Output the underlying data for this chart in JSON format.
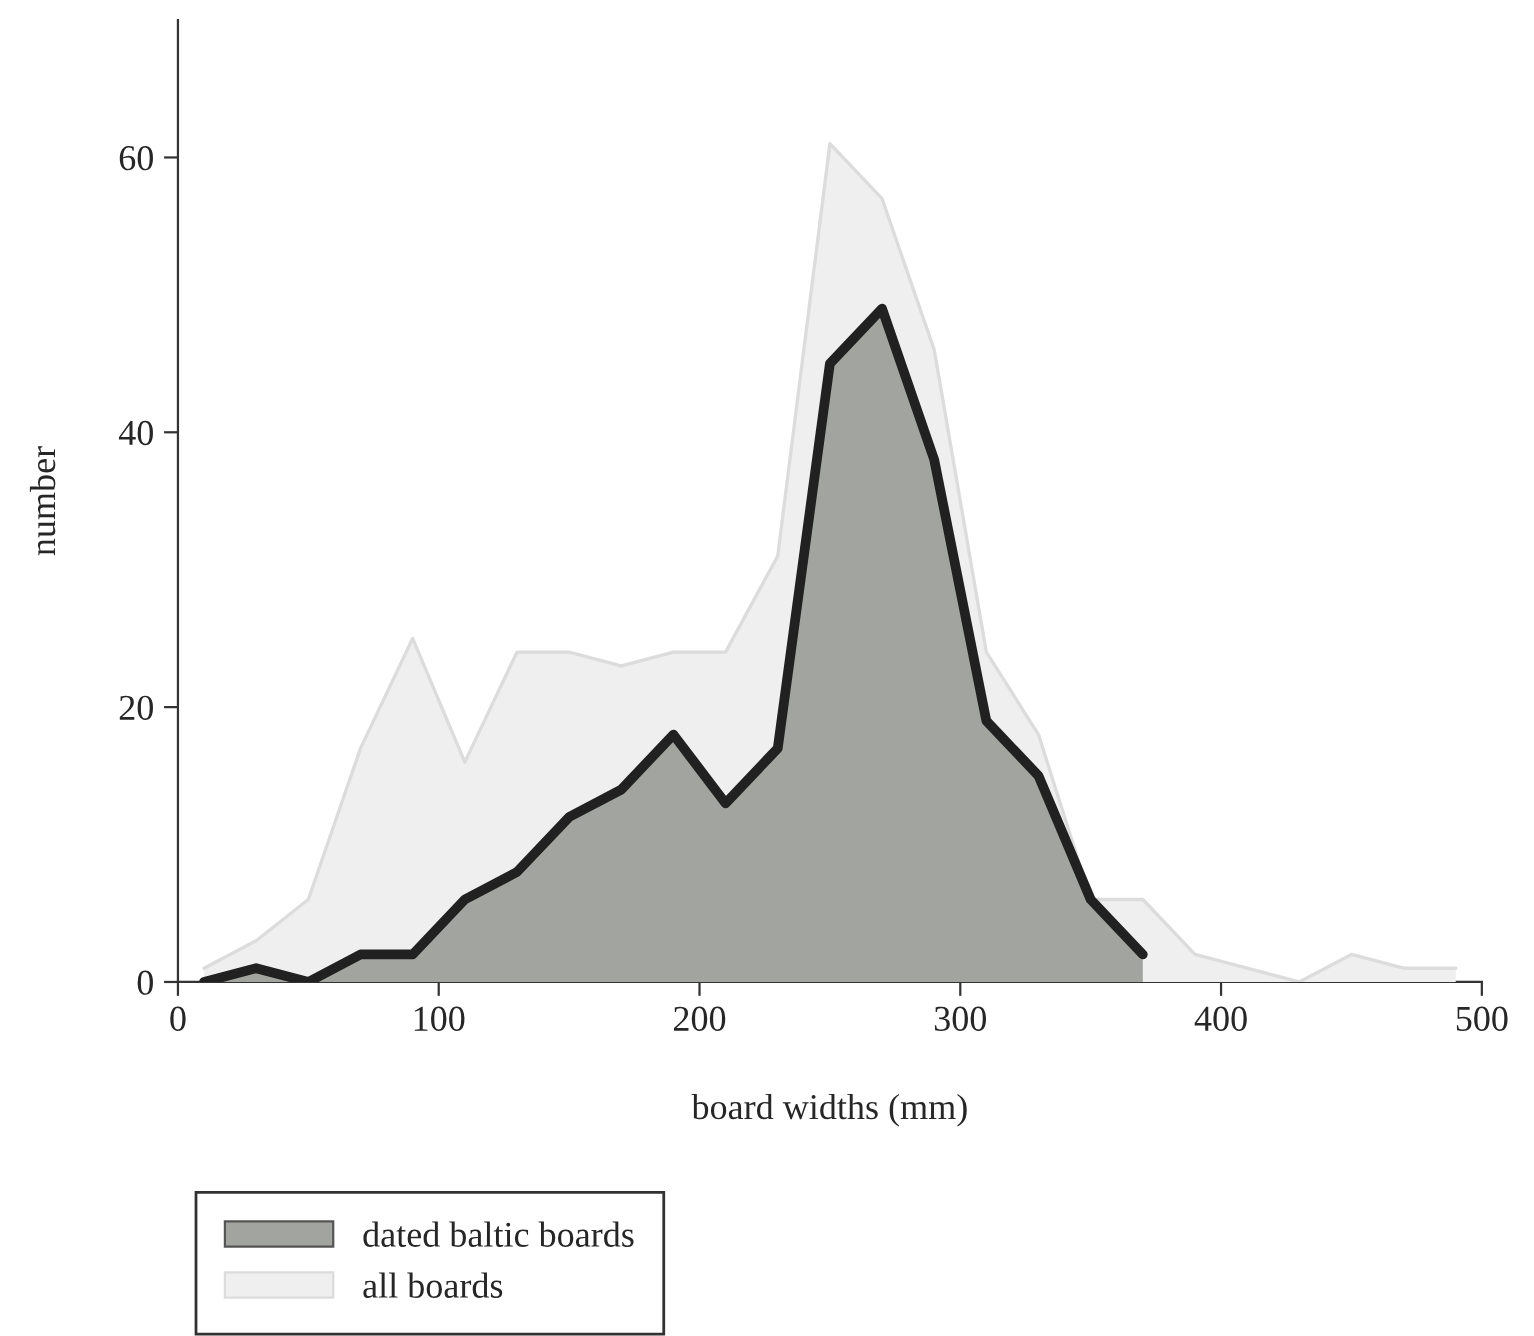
{
  "chart_data": {
    "type": "area",
    "xlabel": "board widths (mm)",
    "ylabel": "number",
    "xlim": [
      0,
      500
    ],
    "xticks": [
      0,
      100,
      200,
      300,
      400,
      500
    ],
    "ylim": [
      0,
      70
    ],
    "yticks": [
      0,
      20,
      40,
      60
    ],
    "grid": false,
    "legend": "bottom left",
    "marker": "none",
    "line_style": "solid",
    "series": [
      {
        "name": "dated baltic boards",
        "color": "#a2a59f",
        "x": [
          10,
          30,
          50,
          70,
          90,
          110,
          130,
          150,
          170,
          190,
          210,
          230,
          250,
          270,
          290,
          310,
          330,
          350,
          370
        ],
        "values": [
          0,
          1,
          0,
          2,
          2,
          6,
          8,
          12,
          14,
          18,
          13,
          17,
          45,
          49,
          38,
          19,
          15,
          6,
          2
        ]
      },
      {
        "name": "all boards",
        "color": "#efefef",
        "x": [
          10,
          30,
          50,
          70,
          90,
          110,
          130,
          150,
          170,
          190,
          210,
          230,
          250,
          270,
          290,
          310,
          330,
          350,
          370,
          390,
          410,
          430,
          450,
          470,
          490
        ],
        "values": [
          1,
          3,
          6,
          17,
          25,
          16,
          24,
          24,
          23,
          24,
          24,
          31,
          61,
          57,
          46,
          24,
          18,
          6,
          6,
          2,
          1,
          0,
          2,
          1,
          1
        ]
      }
    ]
  }
}
